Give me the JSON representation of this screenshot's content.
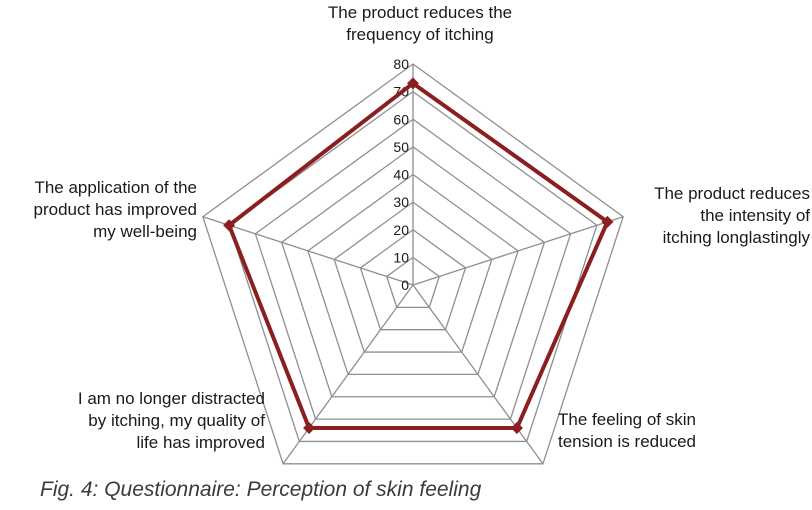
{
  "chart_data": {
    "type": "radar",
    "axes": [
      "The product reduces the\nfrequency of itching",
      "The product reduces\nthe intensity of\nitching longlastingly",
      "The feeling of skin\ntension is reduced",
      "I am no longer distracted\nby itching, my quality of\nlife has improved",
      "The application of the\nproduct has improved\nmy well-being"
    ],
    "values": [
      73,
      74,
      64,
      64,
      70
    ],
    "rlim": [
      0,
      80
    ],
    "ticks": [
      0,
      10,
      20,
      30,
      40,
      50,
      60,
      70,
      80
    ],
    "grid": true,
    "colors": {
      "series": "#8b1f1f",
      "grid": "#8f8f8f"
    }
  },
  "caption": "Fig. 4: Questionnaire: Perception of skin feeling"
}
